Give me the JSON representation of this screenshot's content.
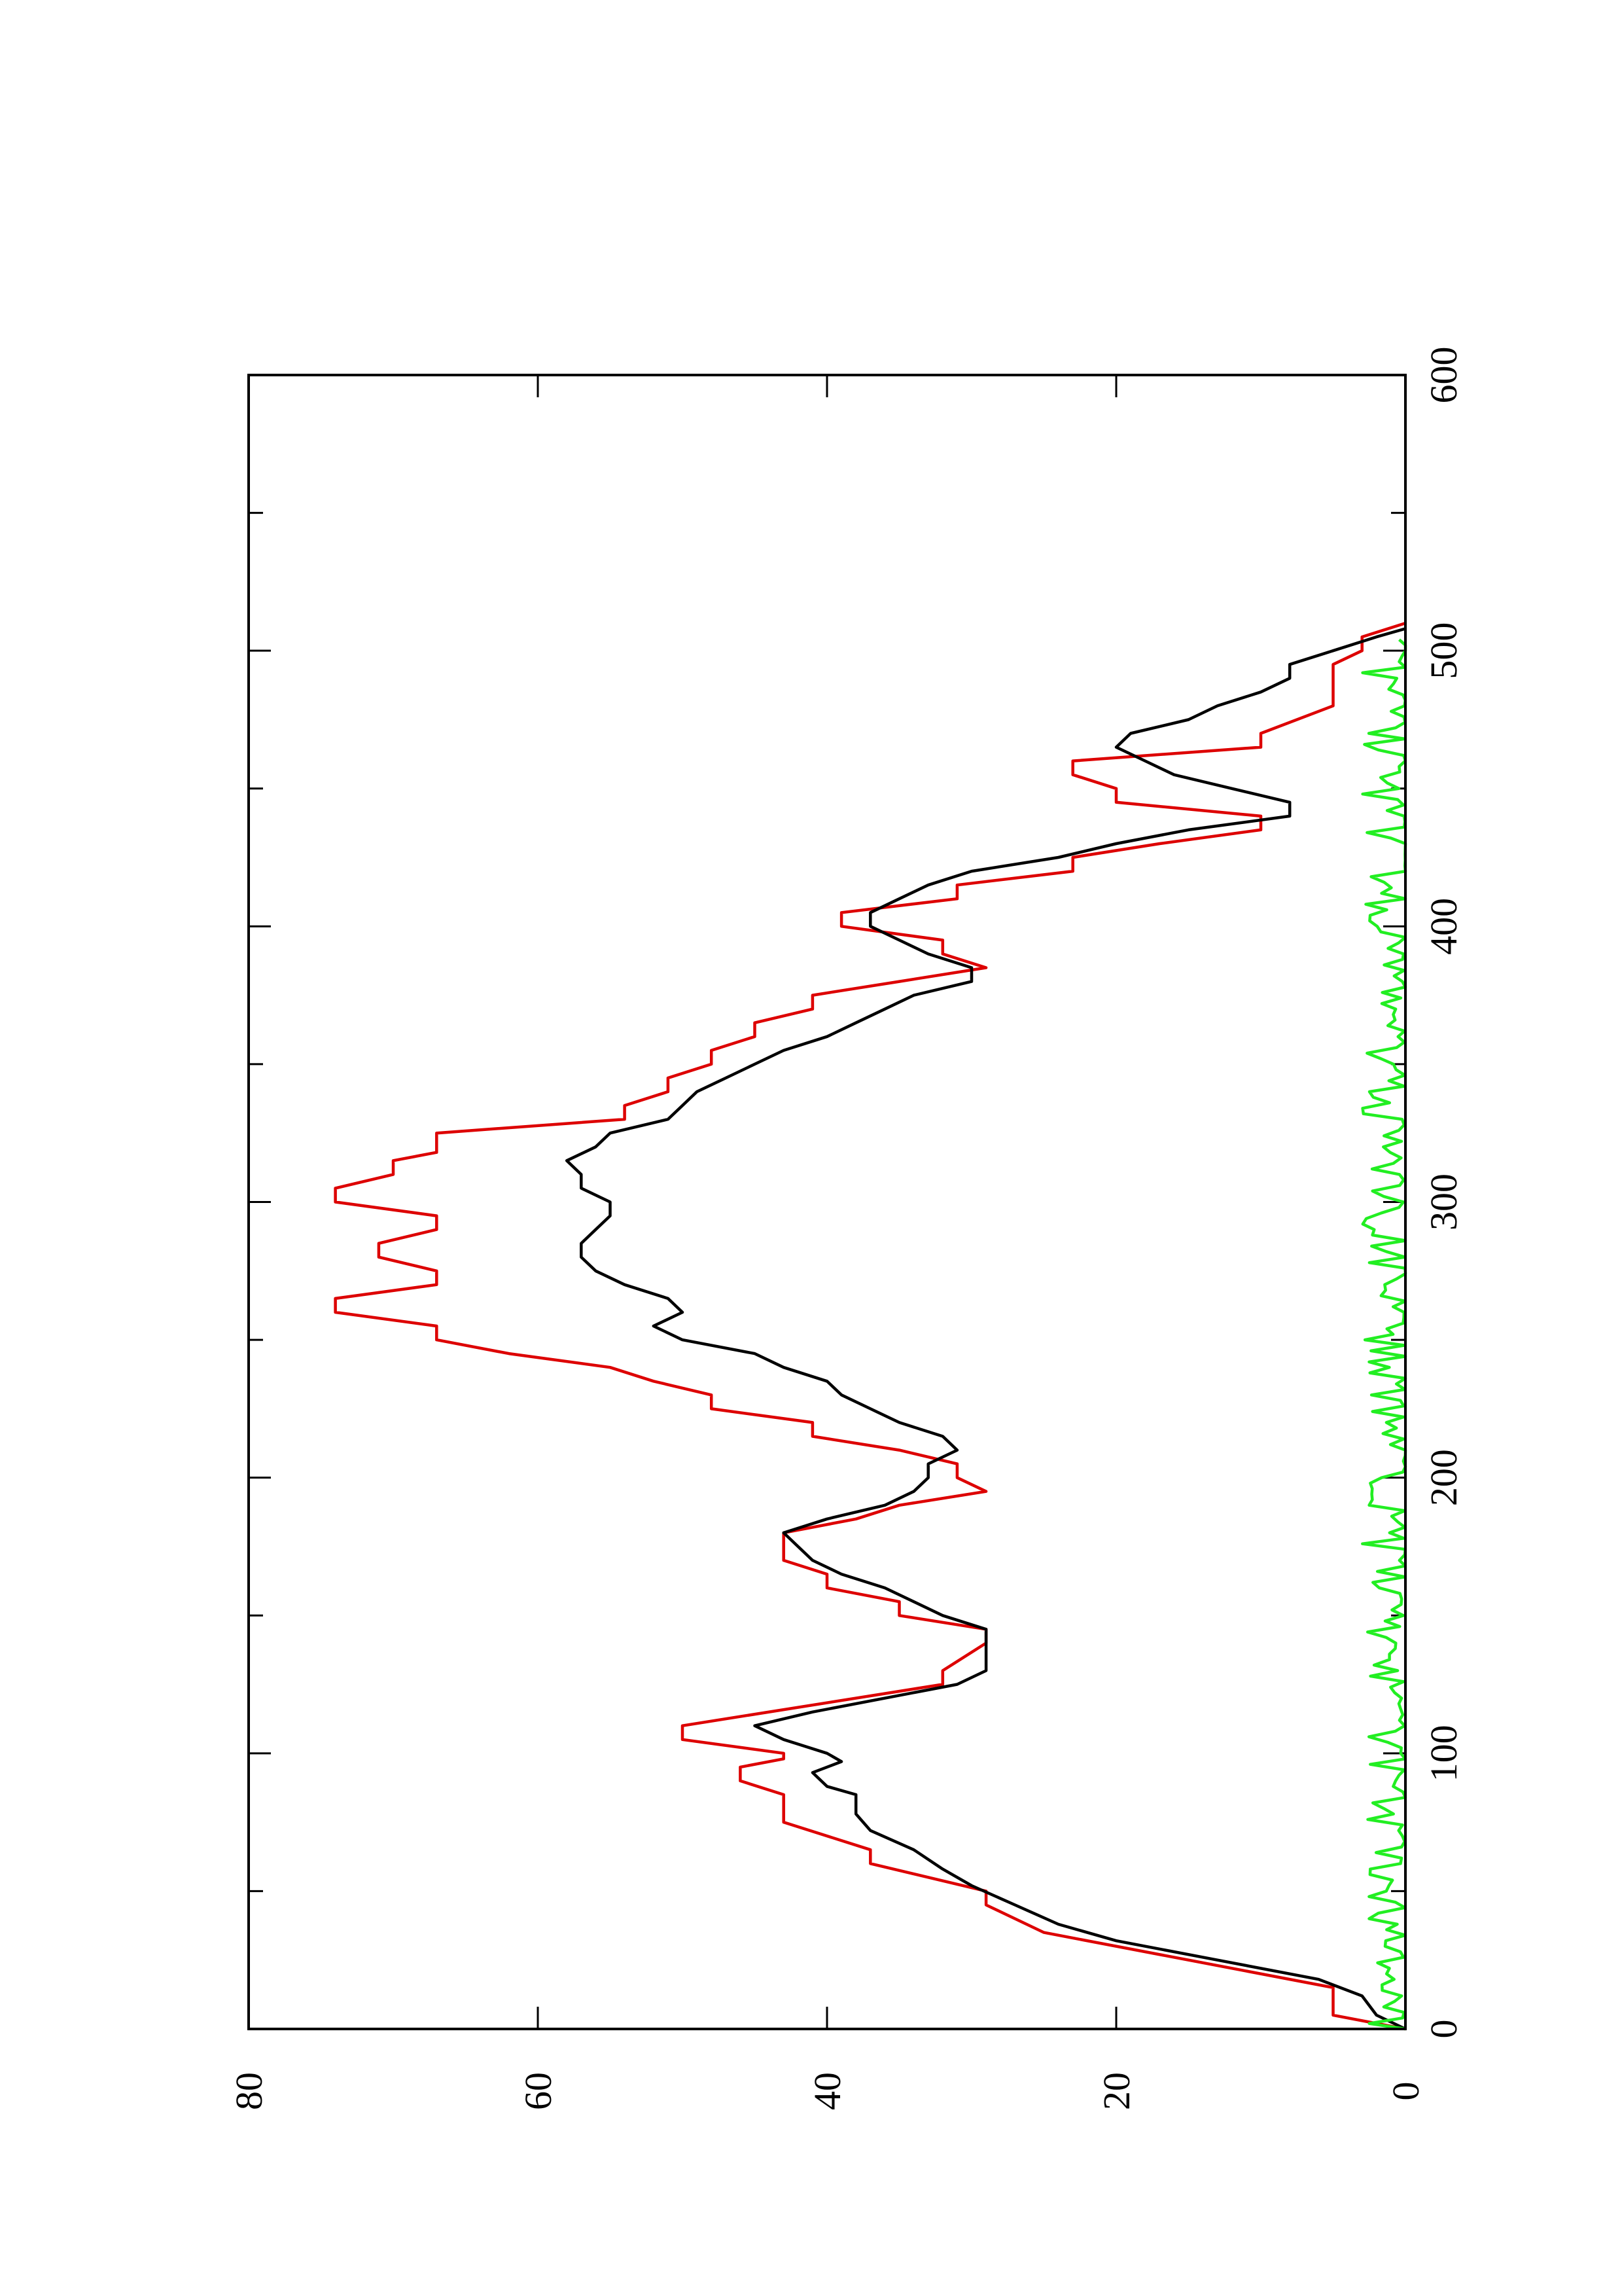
{
  "chart_data": {
    "type": "line",
    "orientation": "rotated-90-ccw",
    "title": "",
    "xlabel": "",
    "ylabel": "",
    "xlim": [
      0,
      600
    ],
    "ylim": [
      0,
      80
    ],
    "x_ticks": [
      "0",
      "100",
      "200",
      "300",
      "400",
      "500",
      "600"
    ],
    "y_ticks": [
      "0",
      "20",
      "40",
      "60",
      "80"
    ],
    "x_minor_step": 50,
    "grid": false,
    "legend": "none",
    "series": [
      {
        "color": "#dd0000",
        "shape": "step",
        "points": [
          [
            0,
            0
          ],
          [
            5,
            5
          ],
          [
            15,
            5
          ],
          [
            25,
            15
          ],
          [
            35,
            25
          ],
          [
            45,
            29
          ],
          [
            50,
            29
          ],
          [
            60,
            37
          ],
          [
            65,
            37
          ],
          [
            75,
            43
          ],
          [
            85,
            43
          ],
          [
            90,
            46
          ],
          [
            95,
            46
          ],
          [
            98,
            43
          ],
          [
            100,
            43
          ],
          [
            105,
            50
          ],
          [
            110,
            50
          ],
          [
            125,
            32
          ],
          [
            130,
            32
          ],
          [
            140,
            29
          ],
          [
            145,
            29
          ],
          [
            150,
            35
          ],
          [
            155,
            35
          ],
          [
            160,
            40
          ],
          [
            165,
            40
          ],
          [
            170,
            43
          ],
          [
            180,
            43
          ],
          [
            185,
            38
          ],
          [
            190,
            35
          ],
          [
            195,
            29
          ],
          [
            200,
            31
          ],
          [
            205,
            31
          ],
          [
            210,
            35
          ],
          [
            215,
            41
          ],
          [
            220,
            41
          ],
          [
            225,
            48
          ],
          [
            230,
            48
          ],
          [
            235,
            52
          ],
          [
            240,
            55
          ],
          [
            245,
            62
          ],
          [
            250,
            67
          ],
          [
            255,
            67
          ],
          [
            260,
            74
          ],
          [
            265,
            74
          ],
          [
            270,
            67
          ],
          [
            275,
            67
          ],
          [
            280,
            71
          ],
          [
            285,
            71
          ],
          [
            290,
            67
          ],
          [
            295,
            67
          ],
          [
            300,
            74
          ],
          [
            305,
            74
          ],
          [
            310,
            70
          ],
          [
            315,
            70
          ],
          [
            318,
            67
          ],
          [
            325,
            67
          ],
          [
            330,
            54
          ],
          [
            335,
            54
          ],
          [
            340,
            51
          ],
          [
            345,
            51
          ],
          [
            350,
            48
          ],
          [
            355,
            48
          ],
          [
            360,
            45
          ],
          [
            365,
            45
          ],
          [
            370,
            41
          ],
          [
            375,
            41
          ],
          [
            380,
            35
          ],
          [
            385,
            29
          ],
          [
            390,
            32
          ],
          [
            395,
            32
          ],
          [
            400,
            39
          ],
          [
            405,
            39
          ],
          [
            410,
            31
          ],
          [
            415,
            31
          ],
          [
            420,
            23
          ],
          [
            425,
            23
          ],
          [
            430,
            17
          ],
          [
            435,
            10
          ],
          [
            440,
            10
          ],
          [
            445,
            20
          ],
          [
            450,
            20
          ],
          [
            455,
            23
          ],
          [
            460,
            23
          ],
          [
            465,
            10
          ],
          [
            470,
            10
          ],
          [
            480,
            5
          ],
          [
            495,
            5
          ],
          [
            500,
            3
          ],
          [
            505,
            3
          ],
          [
            510,
            0
          ]
        ]
      },
      {
        "color": "#000000",
        "shape": "line",
        "points": [
          [
            0,
            0
          ],
          [
            5,
            2
          ],
          [
            12,
            3
          ],
          [
            18,
            6
          ],
          [
            25,
            13
          ],
          [
            32,
            20
          ],
          [
            38,
            24
          ],
          [
            45,
            27
          ],
          [
            52,
            30
          ],
          [
            58,
            32
          ],
          [
            65,
            34
          ],
          [
            72,
            37
          ],
          [
            78,
            38
          ],
          [
            85,
            38
          ],
          [
            88,
            40
          ],
          [
            93,
            41
          ],
          [
            97,
            39
          ],
          [
            100,
            40
          ],
          [
            105,
            43
          ],
          [
            110,
            45
          ],
          [
            115,
            41
          ],
          [
            120,
            36
          ],
          [
            125,
            31
          ],
          [
            130,
            29
          ],
          [
            135,
            29
          ],
          [
            140,
            29
          ],
          [
            145,
            29
          ],
          [
            150,
            32
          ],
          [
            155,
            34
          ],
          [
            160,
            36
          ],
          [
            165,
            39
          ],
          [
            170,
            41
          ],
          [
            175,
            42
          ],
          [
            180,
            43
          ],
          [
            185,
            40
          ],
          [
            190,
            36
          ],
          [
            195,
            34
          ],
          [
            200,
            33
          ],
          [
            205,
            33
          ],
          [
            210,
            31
          ],
          [
            215,
            32
          ],
          [
            220,
            35
          ],
          [
            225,
            37
          ],
          [
            230,
            39
          ],
          [
            235,
            40
          ],
          [
            240,
            43
          ],
          [
            245,
            45
          ],
          [
            250,
            50
          ],
          [
            255,
            52
          ],
          [
            260,
            50
          ],
          [
            265,
            51
          ],
          [
            270,
            54
          ],
          [
            275,
            56
          ],
          [
            280,
            57
          ],
          [
            285,
            57
          ],
          [
            290,
            56
          ],
          [
            295,
            55
          ],
          [
            300,
            55
          ],
          [
            305,
            57
          ],
          [
            310,
            57
          ],
          [
            315,
            58
          ],
          [
            320,
            56
          ],
          [
            325,
            55
          ],
          [
            330,
            51
          ],
          [
            335,
            50
          ],
          [
            340,
            49
          ],
          [
            345,
            47
          ],
          [
            350,
            45
          ],
          [
            355,
            43
          ],
          [
            360,
            40
          ],
          [
            365,
            38
          ],
          [
            370,
            36
          ],
          [
            375,
            34
          ],
          [
            380,
            30
          ],
          [
            385,
            30
          ],
          [
            390,
            33
          ],
          [
            395,
            35
          ],
          [
            400,
            37
          ],
          [
            405,
            37
          ],
          [
            410,
            35
          ],
          [
            415,
            33
          ],
          [
            420,
            30
          ],
          [
            425,
            24
          ],
          [
            430,
            20
          ],
          [
            435,
            15
          ],
          [
            440,
            8
          ],
          [
            445,
            8
          ],
          [
            450,
            12
          ],
          [
            455,
            16
          ],
          [
            460,
            18
          ],
          [
            465,
            20
          ],
          [
            470,
            19
          ],
          [
            475,
            15
          ],
          [
            480,
            13
          ],
          [
            485,
            10
          ],
          [
            490,
            8
          ],
          [
            495,
            8
          ],
          [
            500,
            5
          ],
          [
            505,
            2
          ],
          [
            508,
            0
          ]
        ]
      },
      {
        "color": "#22ee22",
        "shape": "noise",
        "seed": 7,
        "x_range": [
          0,
          505
        ],
        "y_min": 0,
        "y_max": 3,
        "step": 2
      }
    ]
  }
}
